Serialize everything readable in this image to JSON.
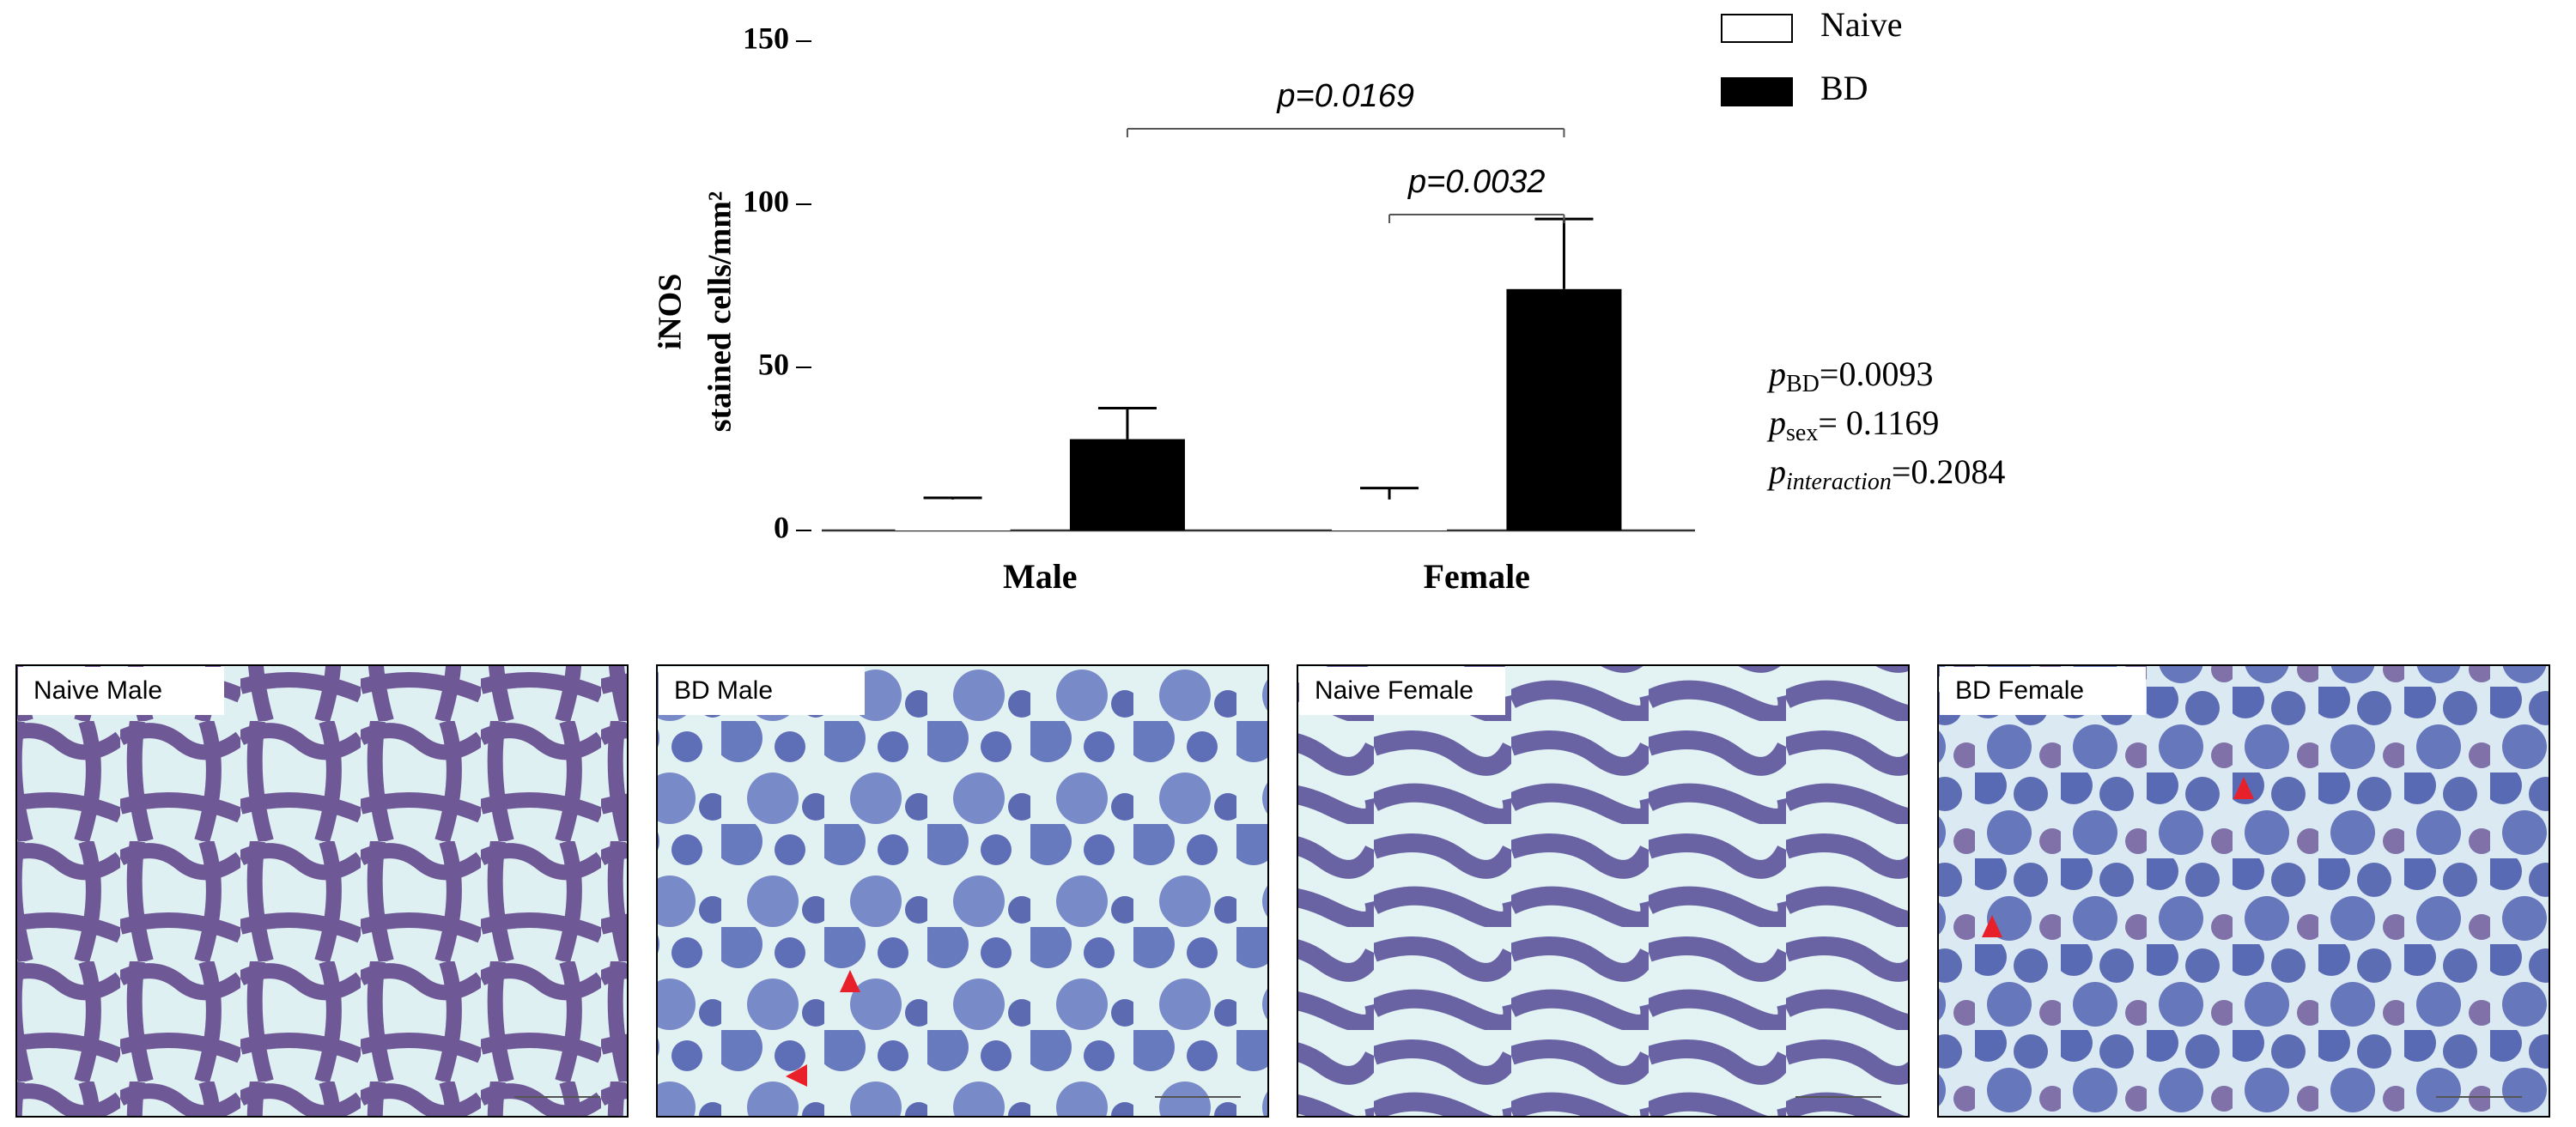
{
  "chart_data": {
    "type": "bar",
    "ylabel": [
      "iNOS",
      "stained cells/mm²"
    ],
    "categories": [
      "Male",
      "Female"
    ],
    "series": [
      {
        "name": "Naive",
        "color": "#ffffff",
        "values": [
          9.5,
          9.5
        ],
        "errors": [
          0.5,
          3.5
        ]
      },
      {
        "name": "BD",
        "color": "#000000",
        "values": [
          28,
          74
        ],
        "errors": [
          9.5,
          21.5
        ]
      }
    ],
    "ylim": [
      0,
      150
    ],
    "yticks": [
      0,
      50,
      100,
      150
    ],
    "annotations": [
      "p=0.0169",
      "p=0.0032"
    ],
    "stats": [
      {
        "symbol": "p",
        "sub": "BD",
        "text": "=0.0093"
      },
      {
        "symbol": "p",
        "sub": "sex",
        "text": "= 0.1169"
      },
      {
        "symbol": "p",
        "sub": "interaction",
        "text": "=0.2084"
      }
    ]
  },
  "panels": [
    "Naive Male",
    "BD Male",
    "Naive Female",
    "BD Female"
  ]
}
